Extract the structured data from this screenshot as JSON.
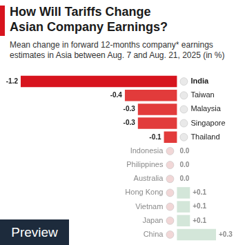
{
  "chart_data": {
    "type": "bar",
    "title": "How Will Tariffs Change Asian Company Earnings?",
    "subtitle": "Mean change in forward 12-months company* earnings estimates in Asia between Aug. 7 and Aug. 21, 2025 (in %)",
    "categories": [
      "India",
      "Taiwan",
      "Malaysia",
      "Singapore",
      "Thailand",
      "Indonesia",
      "Philippines",
      "Australia",
      "Hong Kong",
      "Vietnam",
      "Japan",
      "China"
    ],
    "values": [
      -1.2,
      -0.4,
      -0.3,
      -0.3,
      -0.1,
      0.0,
      0.0,
      0.0,
      0.1,
      0.1,
      0.1,
      0.3
    ],
    "value_labels": [
      "-1.2",
      "-0.4",
      "-0.3",
      "-0.3",
      "-0.1",
      "0.0",
      "0.0",
      "0.0",
      "+0.1",
      "+0.1",
      "+0.1",
      "+0.3"
    ],
    "colors": [
      "#d7141e",
      "#e23b3b",
      "#e23b3b",
      "#e23b3b",
      "#e23b3b",
      "#cccccc",
      "#cccccc",
      "#cccccc",
      "#d3e6d9",
      "#d3e6d9",
      "#d3e6d9",
      "#d3e6d9"
    ],
    "orientation": "horizontal",
    "data_labels": true,
    "tick_labels": false,
    "grid": false,
    "xlim": [
      -1.2,
      0.3
    ],
    "annotations": [
      "Preview"
    ]
  }
}
